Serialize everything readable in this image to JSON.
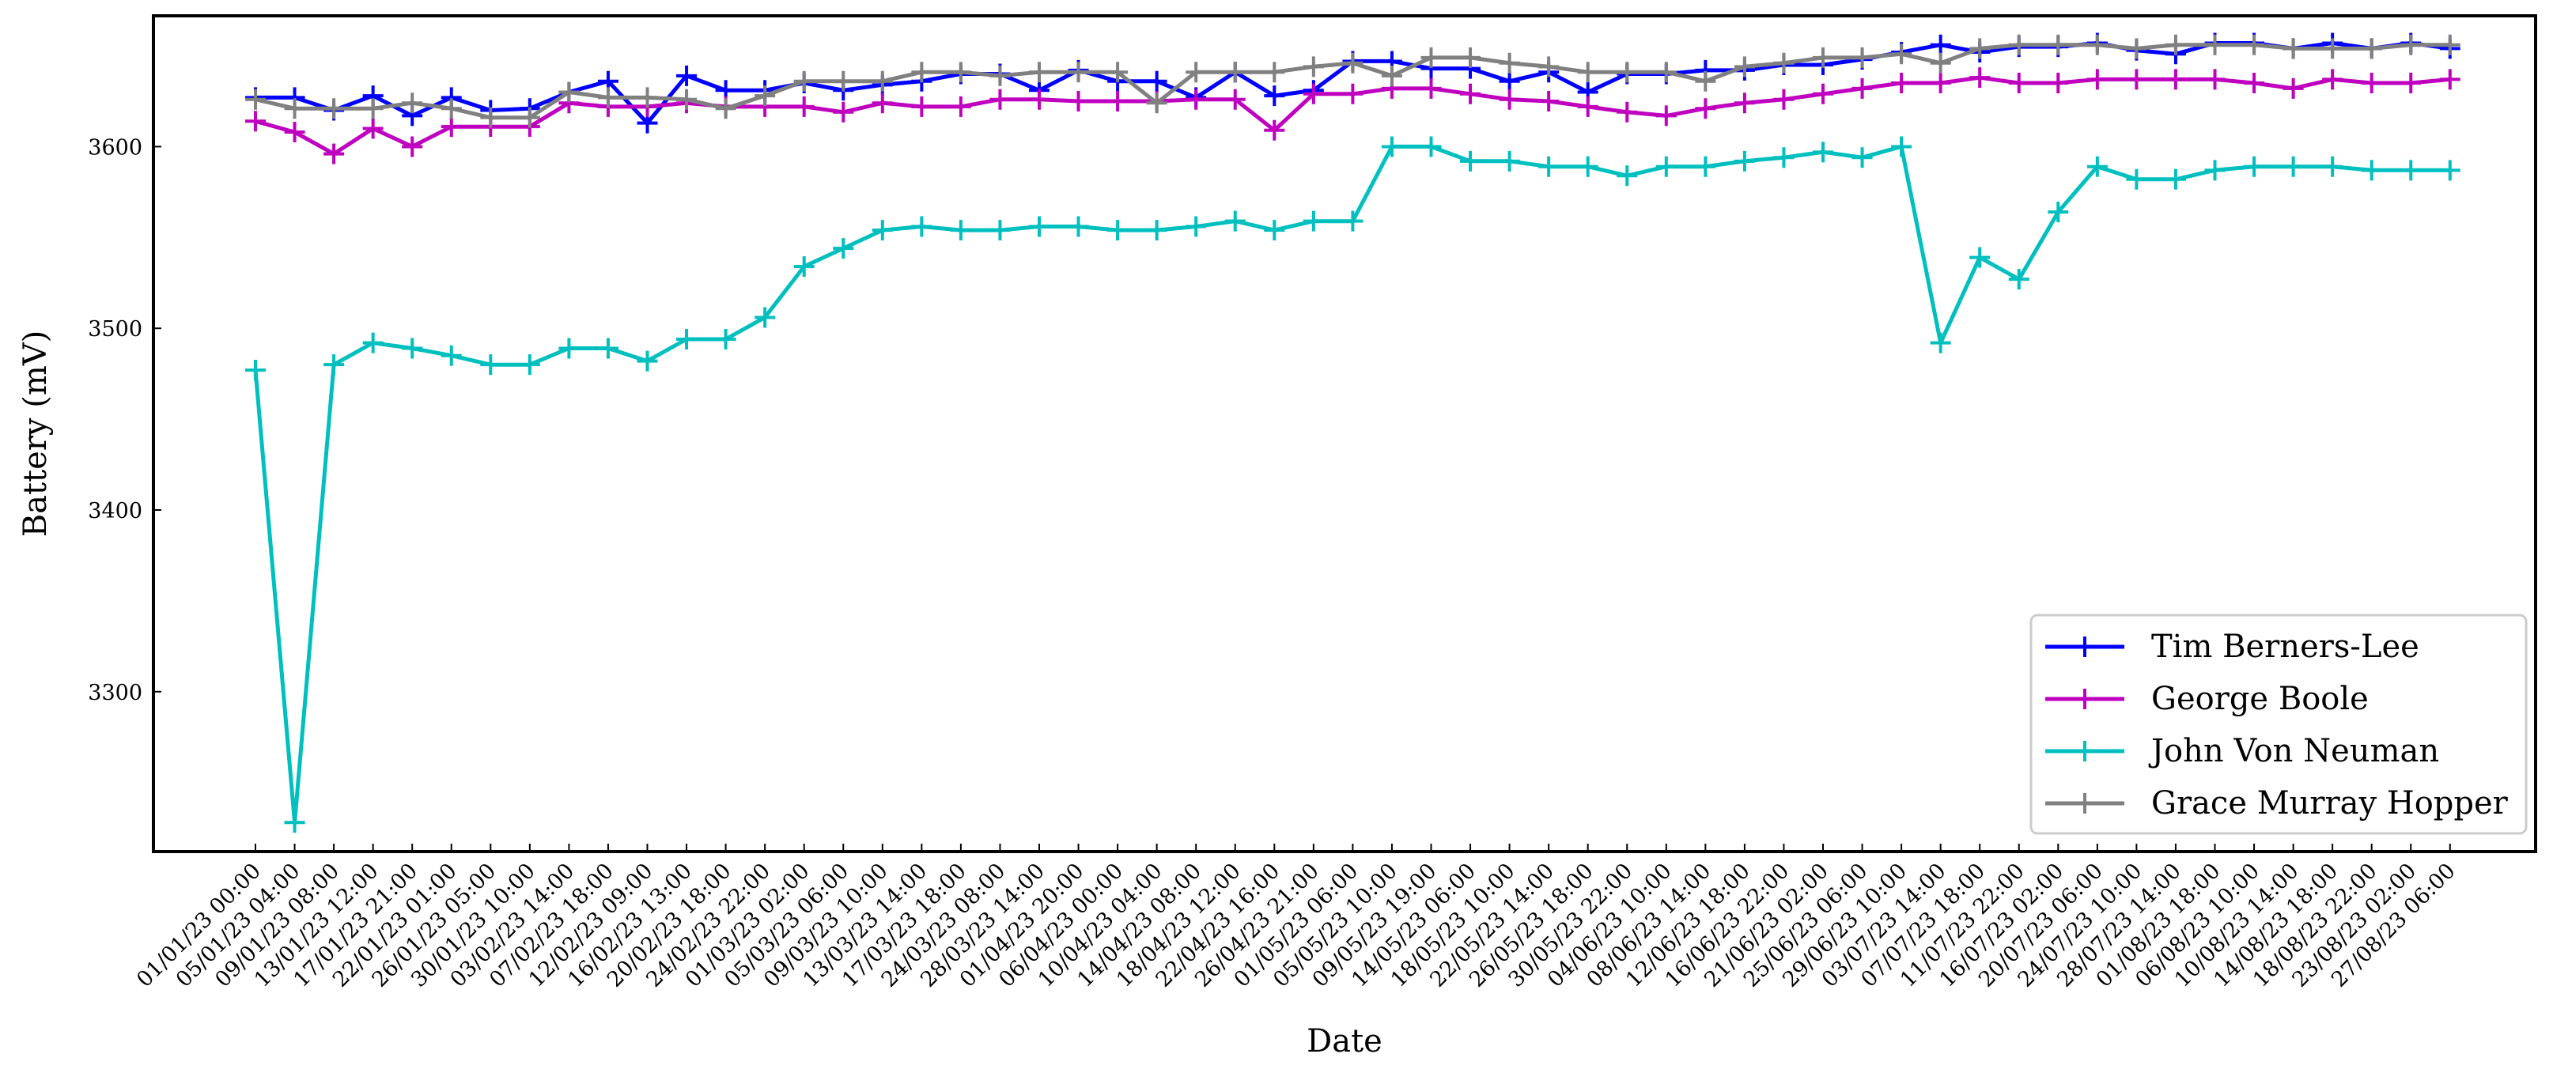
{
  "chart_data": {
    "type": "line",
    "title": "",
    "xlabel": "Date",
    "ylabel": "Battery (mV)",
    "ylim": [
      3212,
      3672
    ],
    "yticks": [
      3300,
      3400,
      3500,
      3600
    ],
    "grid": false,
    "legend_position": "lower-right",
    "marker": "+",
    "categories": [
      "01/01/23 00:00",
      "05/01/23 04:00",
      "09/01/23 08:00",
      "13/01/23 12:00",
      "17/01/23 21:00",
      "22/01/23 01:00",
      "26/01/23 05:00",
      "30/01/23 10:00",
      "03/02/23 14:00",
      "07/02/23 18:00",
      "12/02/23 09:00",
      "16/02/23 13:00",
      "20/02/23 18:00",
      "24/02/23 22:00",
      "01/03/23 02:00",
      "05/03/23 06:00",
      "09/03/23 10:00",
      "13/03/23 14:00",
      "17/03/23 18:00",
      "24/03/23 08:00",
      "28/03/23 14:00",
      "01/04/23 20:00",
      "06/04/23 00:00",
      "10/04/23 04:00",
      "14/04/23 08:00",
      "18/04/23 12:00",
      "22/04/23 16:00",
      "26/04/23 21:00",
      "01/05/23 06:00",
      "05/05/23 10:00",
      "09/05/23 19:00",
      "14/05/23 06:00",
      "18/05/23 10:00",
      "22/05/23 14:00",
      "26/05/23 18:00",
      "30/05/23 22:00",
      "04/06/23 10:00",
      "08/06/23 14:00",
      "12/06/23 18:00",
      "16/06/23 22:00",
      "21/06/23 02:00",
      "25/06/23 06:00",
      "29/06/23 10:00",
      "03/07/23 14:00",
      "07/07/23 18:00",
      "11/07/23 22:00",
      "16/07/23 02:00",
      "20/07/23 06:00",
      "24/07/23 10:00",
      "28/07/23 14:00",
      "01/08/23 18:00",
      "06/08/23 10:00",
      "10/08/23 14:00",
      "14/08/23 18:00",
      "18/08/23 22:00",
      "23/08/23 02:00",
      "27/08/23 06:00"
    ],
    "series": [
      {
        "name": "Tim Berners-Lee",
        "color": "#0000ff",
        "values": [
          3627,
          3627,
          3620,
          3628,
          3617,
          3627,
          3620,
          3621,
          3630,
          3636,
          3613,
          3639,
          3631,
          3631,
          3635,
          3631,
          3634,
          3636,
          3640,
          3640,
          3631,
          3642,
          3636,
          3636,
          3627,
          3641,
          3628,
          3631,
          3647,
          3647,
          3643,
          3643,
          3636,
          3641,
          3630,
          3640,
          3640,
          3642,
          3642,
          3645,
          3645,
          3648,
          3652,
          3656,
          3652,
          3655,
          3655,
          3657,
          3653,
          3651,
          3657,
          3657,
          3654,
          3657,
          3654,
          3657,
          3654
        ]
      },
      {
        "name": "George Boole",
        "color": "#bf00bf",
        "values": [
          3614,
          3608,
          3596,
          3610,
          3600,
          3611,
          3611,
          3611,
          3624,
          3622,
          3622,
          3624,
          3622,
          3622,
          3622,
          3619,
          3624,
          3622,
          3622,
          3626,
          3626,
          3625,
          3625,
          3625,
          3626,
          3626,
          3609,
          3629,
          3629,
          3632,
          3632,
          3629,
          3626,
          3625,
          3622,
          3619,
          3617,
          3621,
          3624,
          3626,
          3629,
          3632,
          3635,
          3635,
          3638,
          3635,
          3635,
          3637,
          3637,
          3637,
          3637,
          3635,
          3632,
          3637,
          3635,
          3635,
          3637
        ]
      },
      {
        "name": "John Von Neuman",
        "color": "#00bfbf",
        "values": [
          3477,
          3228,
          3480,
          3492,
          3489,
          3485,
          3480,
          3480,
          3489,
          3489,
          3482,
          3494,
          3494,
          3506,
          3534,
          3544,
          3554,
          3556,
          3554,
          3554,
          3556,
          3556,
          3554,
          3554,
          3556,
          3559,
          3554,
          3559,
          3559,
          3600,
          3600,
          3592,
          3592,
          3589,
          3589,
          3584,
          3589,
          3589,
          3592,
          3594,
          3597,
          3594,
          3600,
          3492,
          3539,
          3527,
          3564,
          3589,
          3582,
          3582,
          3587,
          3589,
          3589,
          3589,
          3587,
          3587,
          3587
        ]
      },
      {
        "name": "Grace Murray Hopper",
        "color": "#808080",
        "values": [
          3626,
          3621,
          3621,
          3621,
          3624,
          3621,
          3616,
          3616,
          3630,
          3627,
          3627,
          3626,
          3621,
          3628,
          3636,
          3636,
          3636,
          3641,
          3641,
          3639,
          3641,
          3641,
          3641,
          3624,
          3641,
          3641,
          3641,
          3644,
          3646,
          3639,
          3649,
          3649,
          3646,
          3644,
          3641,
          3641,
          3641,
          3636,
          3644,
          3646,
          3649,
          3649,
          3651,
          3646,
          3654,
          3656,
          3656,
          3656,
          3654,
          3656,
          3656,
          3656,
          3654,
          3654,
          3654,
          3656,
          3656
        ]
      }
    ]
  }
}
